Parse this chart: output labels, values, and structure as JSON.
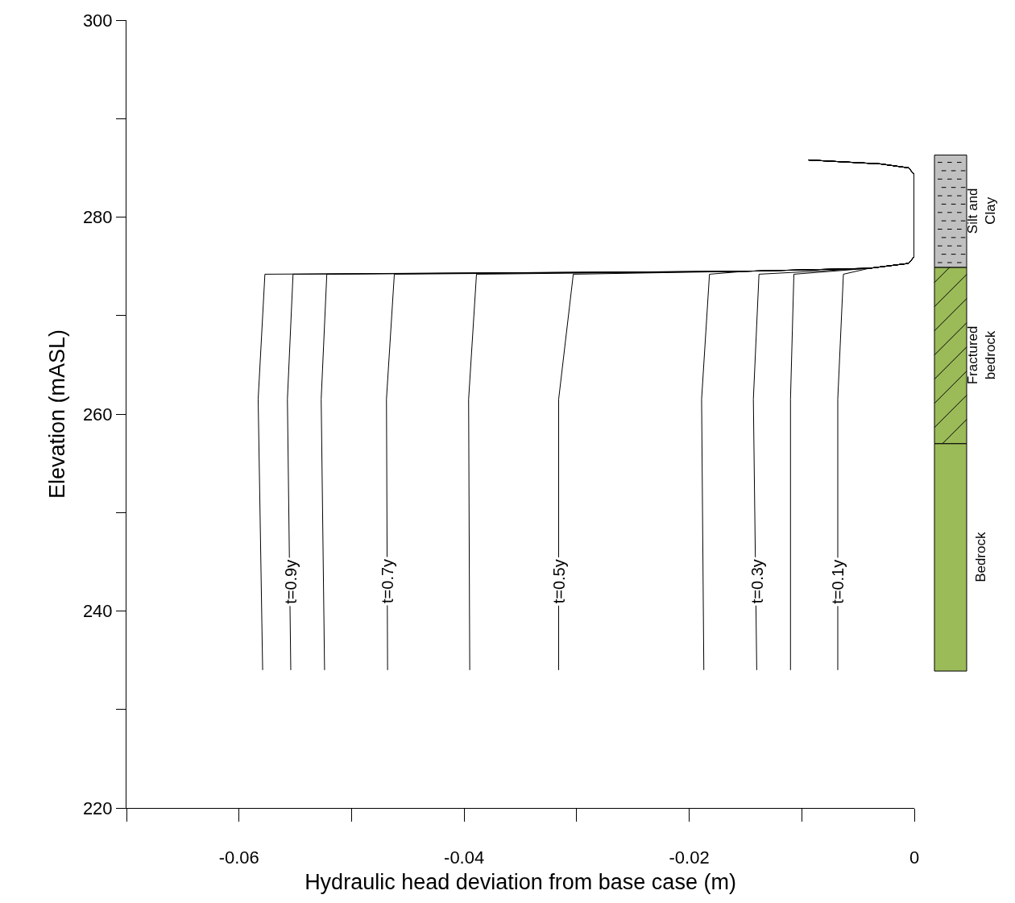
{
  "chart_data": {
    "type": "line",
    "xlabel": "Hydraulic head deviation from base case (m)",
    "ylabel": "Elevation (mASL)",
    "xlim": [
      -0.07,
      0
    ],
    "ylim": [
      220,
      300
    ],
    "xticks": [
      {
        "value": -0.07,
        "label": null
      },
      -0.06,
      {
        "value": -0.05,
        "label": null
      },
      -0.04,
      {
        "value": -0.03,
        "label": null
      },
      -0.02,
      {
        "value": -0.01,
        "label": null
      },
      0
    ],
    "yticks": [
      220,
      {
        "value": 230,
        "label": null
      },
      240,
      {
        "value": 250,
        "label": null
      },
      260,
      {
        "value": 270,
        "label": null
      },
      280,
      {
        "value": 290,
        "label": null
      },
      300
    ],
    "series": [
      {
        "color": "#000000",
        "x": [
          -0.0094,
          -0.003,
          -0.0005,
          0,
          0,
          -0.0005,
          -0.004,
          -0.015,
          -0.0577,
          -0.0583,
          -0.0579
        ],
        "values": [
          285.8,
          285.4,
          285.0,
          284.3,
          276.0,
          275.3,
          274.8,
          274.5,
          274.2,
          261.5,
          234.0
        ]
      },
      {
        "color": "#000000",
        "x": [
          -0.0094,
          -0.003,
          -0.0005,
          0,
          0,
          -0.0005,
          -0.004,
          -0.015,
          -0.0552,
          -0.0557,
          -0.0554
        ],
        "values": [
          285.8,
          285.4,
          285.0,
          284.3,
          276.0,
          275.3,
          274.8,
          274.5,
          274.2,
          261.5,
          234.0
        ]
      },
      {
        "color": "#000000",
        "x": [
          -0.0094,
          -0.003,
          -0.0005,
          0,
          0,
          -0.0005,
          -0.004,
          -0.015,
          -0.0522,
          -0.0527,
          -0.0524
        ],
        "values": [
          285.8,
          285.4,
          285.0,
          284.3,
          276.0,
          275.3,
          274.8,
          274.5,
          274.2,
          261.5,
          234.0
        ]
      },
      {
        "color": "#000000",
        "x": [
          -0.0094,
          -0.003,
          -0.0005,
          0,
          0,
          -0.0005,
          -0.004,
          -0.015,
          -0.0462,
          -0.0469,
          -0.0468
        ],
        "values": [
          285.8,
          285.4,
          285.0,
          284.3,
          276.0,
          275.3,
          274.8,
          274.5,
          274.2,
          261.5,
          234.0
        ]
      },
      {
        "color": "#000000",
        "x": [
          -0.0094,
          -0.003,
          -0.0005,
          0,
          0,
          -0.0005,
          -0.004,
          -0.015,
          -0.0389,
          -0.0396,
          -0.0395
        ],
        "values": [
          285.8,
          285.4,
          285.0,
          284.3,
          276.0,
          275.3,
          274.8,
          274.5,
          274.2,
          261.5,
          234.0
        ]
      },
      {
        "color": "#000000",
        "x": [
          -0.0094,
          -0.003,
          -0.0005,
          0,
          0,
          -0.0005,
          -0.004,
          -0.015,
          -0.0303,
          -0.0316,
          -0.0316
        ],
        "values": [
          285.8,
          285.4,
          285.0,
          284.3,
          276.0,
          275.3,
          274.8,
          274.5,
          274.2,
          261.5,
          234.0
        ]
      },
      {
        "color": "#000000",
        "x": [
          -0.0094,
          -0.003,
          -0.0005,
          0,
          0,
          -0.0005,
          -0.004,
          -0.015,
          -0.0182,
          -0.0189,
          -0.0187
        ],
        "values": [
          285.8,
          285.4,
          285.0,
          284.3,
          276.0,
          275.3,
          274.8,
          274.5,
          274.2,
          261.5,
          234.0
        ]
      },
      {
        "color": "#000000",
        "x": [
          -0.0094,
          -0.003,
          -0.0005,
          0,
          0,
          -0.0005,
          -0.004,
          -0.0138,
          -0.0143,
          -0.014
        ],
        "values": [
          285.8,
          285.4,
          285.0,
          284.3,
          276.0,
          275.3,
          274.8,
          274.2,
          261.5,
          234.0
        ]
      },
      {
        "color": "#000000",
        "x": [
          -0.0094,
          -0.003,
          -0.0005,
          0,
          0,
          -0.0005,
          -0.004,
          -0.0107,
          -0.011,
          -0.011
        ],
        "values": [
          285.8,
          285.4,
          285.0,
          284.3,
          276.0,
          275.3,
          274.8,
          274.2,
          261.5,
          234.0
        ]
      },
      {
        "color": "#000000",
        "x": [
          -0.0094,
          -0.003,
          -0.0005,
          0,
          0,
          -0.0005,
          -0.004,
          -0.0063,
          -0.0068,
          -0.0068
        ],
        "values": [
          285.8,
          285.4,
          285.0,
          284.3,
          276.0,
          275.3,
          274.8,
          274.2,
          261.5,
          234.0
        ]
      }
    ],
    "annotations": [
      "Bedrock",
      "Fractured bedrock",
      "Silt and Clay",
      {
        "text": "t=0.9y",
        "x": -0.0554,
        "y": 243
      },
      {
        "text": "t=0.7y",
        "x": -0.0468,
        "y": 243
      },
      {
        "text": "t=0.5y",
        "x": -0.0316,
        "y": 243
      },
      {
        "text": "t=0.3y",
        "x": -0.014,
        "y": 243
      },
      {
        "text": "t=0.1y",
        "x": -0.0068,
        "y": 243
      }
    ]
  }
}
